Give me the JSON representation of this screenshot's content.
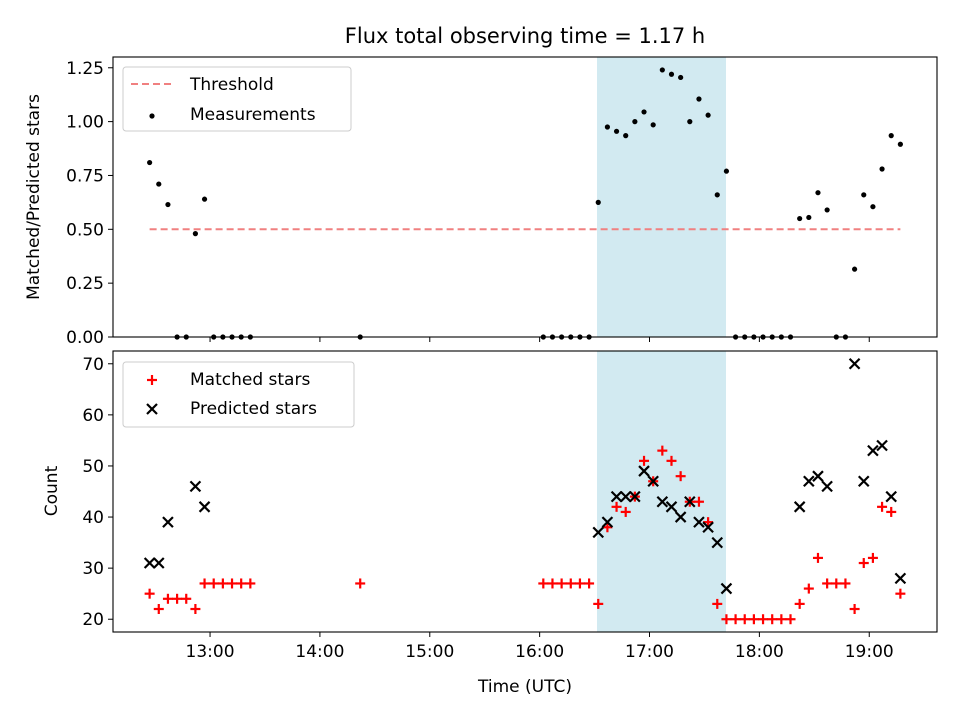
{
  "title": "Flux total observing time = 1.17 h",
  "colors": {
    "threshold": "#f08080",
    "measurements": "#000000",
    "matched": "#ff0000",
    "predicted": "#000000",
    "highlight": "#add8e6"
  },
  "chart_data": [
    {
      "type": "scatter",
      "ylabel": "Matched/Predicted stars",
      "xlim": [
        "12:07",
        "19:37"
      ],
      "ylim": [
        0,
        1.3
      ],
      "yticks": [
        "0.00",
        "0.25",
        "0.50",
        "0.75",
        "1.00",
        "1.25"
      ],
      "highlight_span": [
        "16:32",
        "17:42"
      ],
      "legend": {
        "position": "upper left",
        "entries": [
          "Threshold",
          "Measurements"
        ]
      },
      "series": [
        {
          "name": "Threshold",
          "kind": "dashed-line",
          "x": [
            "12:27",
            "19:17"
          ],
          "y": [
            0.5,
            0.5
          ]
        },
        {
          "name": "Measurements",
          "kind": "dots",
          "x": [
            "12:27",
            "12:32",
            "12:37",
            "12:42",
            "12:47",
            "12:52",
            "12:57",
            "13:02",
            "13:07",
            "13:12",
            "13:17",
            "13:22",
            "14:22",
            "16:02",
            "16:07",
            "16:12",
            "16:17",
            "16:22",
            "16:27",
            "16:32",
            "16:37",
            "16:42",
            "16:47",
            "16:52",
            "16:57",
            "17:02",
            "17:07",
            "17:12",
            "17:17",
            "17:22",
            "17:27",
            "17:32",
            "17:37",
            "17:42",
            "17:47",
            "17:52",
            "17:57",
            "18:02",
            "18:07",
            "18:12",
            "18:17",
            "18:22",
            "18:27",
            "18:32",
            "18:37",
            "18:42",
            "18:47",
            "18:52",
            "18:57",
            "19:02",
            "19:07",
            "19:12",
            "19:17"
          ],
          "y": [
            0.81,
            0.71,
            0.615,
            0.0,
            0.0,
            0.48,
            0.64,
            0.0,
            0.0,
            0.0,
            0.0,
            0.0,
            0.0,
            0.0,
            0.0,
            0.0,
            0.0,
            0.0,
            0.0,
            0.625,
            0.975,
            0.955,
            0.935,
            1.0,
            1.045,
            0.985,
            1.24,
            1.22,
            1.205,
            1.0,
            1.105,
            1.03,
            0.66,
            0.77,
            0.0,
            0.0,
            0.0,
            0.0,
            0.0,
            0.0,
            0.0,
            0.55,
            0.555,
            0.67,
            0.59,
            0.0,
            0.0,
            0.315,
            0.66,
            0.605,
            0.78,
            0.935,
            0.895
          ]
        }
      ]
    },
    {
      "type": "scatter",
      "xlabel": "Time (UTC)",
      "ylabel": "Count",
      "xlim": [
        "12:07",
        "19:37"
      ],
      "ylim": [
        17.5,
        72.5
      ],
      "xticks": [
        "13:00",
        "14:00",
        "15:00",
        "16:00",
        "17:00",
        "18:00",
        "19:00"
      ],
      "yticks": [
        "20",
        "30",
        "40",
        "50",
        "60",
        "70"
      ],
      "highlight_span": [
        "16:32",
        "17:42"
      ],
      "legend": {
        "position": "upper left",
        "entries": [
          "Matched stars",
          "Predicted stars"
        ]
      },
      "series": [
        {
          "name": "Matched stars",
          "marker": "+",
          "x": [
            "12:27",
            "12:32",
            "12:37",
            "12:42",
            "12:47",
            "12:52",
            "12:57",
            "13:02",
            "13:07",
            "13:12",
            "13:17",
            "13:22",
            "14:22",
            "16:02",
            "16:07",
            "16:12",
            "16:17",
            "16:22",
            "16:27",
            "16:32",
            "16:37",
            "16:42",
            "16:47",
            "16:52",
            "16:57",
            "17:02",
            "17:07",
            "17:12",
            "17:17",
            "17:22",
            "17:27",
            "17:32",
            "17:37",
            "17:42",
            "17:47",
            "17:52",
            "17:57",
            "18:02",
            "18:07",
            "18:12",
            "18:17",
            "18:22",
            "18:27",
            "18:32",
            "18:37",
            "18:42",
            "18:47",
            "18:52",
            "18:57",
            "19:02",
            "19:07",
            "19:12",
            "19:17"
          ],
          "y": [
            25,
            22,
            24,
            24,
            24,
            22,
            27,
            27,
            27,
            27,
            27,
            27,
            27,
            27,
            27,
            27,
            27,
            27,
            27,
            23,
            38,
            42,
            41,
            44,
            51,
            47,
            53,
            51,
            48,
            43,
            43,
            39,
            23,
            20,
            20,
            20,
            20,
            20,
            20,
            20,
            20,
            23,
            26,
            32,
            27,
            27,
            27,
            22,
            31,
            32,
            42,
            41,
            25
          ]
        },
        {
          "name": "Predicted stars",
          "marker": "x",
          "x": [
            "12:27",
            "12:32",
            "12:37",
            "12:52",
            "12:57",
            "16:32",
            "16:37",
            "16:42",
            "16:47",
            "16:52",
            "16:57",
            "17:02",
            "17:07",
            "17:12",
            "17:17",
            "17:22",
            "17:27",
            "17:32",
            "17:37",
            "17:42",
            "18:22",
            "18:27",
            "18:32",
            "18:37",
            "18:52",
            "18:57",
            "19:02",
            "19:07",
            "19:12",
            "19:17"
          ],
          "y": [
            31,
            31,
            39,
            46,
            42,
            37,
            39,
            44,
            44,
            44,
            49,
            47,
            43,
            42,
            40,
            43,
            39,
            38,
            35,
            26,
            42,
            47,
            48,
            46,
            70,
            47,
            53,
            54,
            44,
            28
          ]
        }
      ]
    }
  ]
}
